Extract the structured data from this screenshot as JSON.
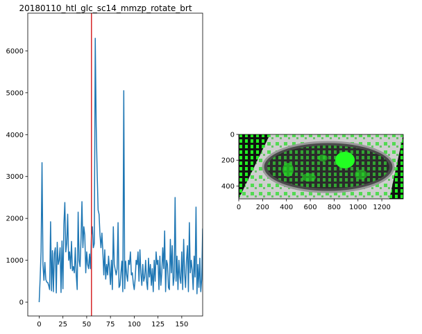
{
  "chart_data": [
    {
      "type": "line",
      "title": "20180110_htl_glc_sc14_mmzp_rotate_brt",
      "xlabel": "",
      "ylabel": "",
      "xlim": [
        -12,
        172
      ],
      "ylim": [
        -330,
        6900
      ],
      "x_ticks": [
        0,
        25,
        50,
        75,
        100,
        125,
        150
      ],
      "y_ticks": [
        0,
        1000,
        2000,
        3000,
        4000,
        5000,
        6000
      ],
      "series": [
        {
          "color": "#1f77b4",
          "values": [
            0,
            550,
            1200,
            3330,
            900,
            520,
            950,
            540,
            480,
            470,
            400,
            300,
            1920,
            270,
            1230,
            250,
            1160,
            1300,
            220,
            1430,
            900,
            1000,
            1300,
            230,
            1460,
            320,
            1850,
            2380,
            1200,
            1400,
            2100,
            1000,
            1200,
            800,
            1450,
            750,
            850,
            700,
            1300,
            650,
            300,
            2150,
            1000,
            850,
            1500,
            2400,
            1300,
            1800,
            1600,
            700,
            1200,
            900,
            800,
            1150,
            800,
            1600,
            1800,
            1300,
            1400,
            6300,
            4200,
            3100,
            2200,
            2100,
            1600,
            1300,
            1650,
            1200,
            650,
            1250,
            550,
            900,
            650,
            1100,
            800,
            420,
            1000,
            300,
            1800,
            900,
            780,
            650,
            800,
            1900,
            350,
            400,
            700,
            980,
            250,
            5050,
            320,
            980,
            650,
            500,
            1000,
            900,
            1200,
            650,
            700,
            450,
            300,
            560,
            1000,
            900,
            1200,
            500,
            1250,
            700,
            400,
            900,
            500,
            600,
            1000,
            500,
            300,
            1050,
            600,
            900,
            400,
            800,
            250,
            1000,
            500,
            1200,
            900,
            1000,
            300,
            1100,
            400,
            700,
            1300,
            800,
            1700,
            250,
            1000,
            900,
            350,
            300,
            1500,
            700,
            1350,
            400,
            600,
            2500,
            500,
            1100,
            300,
            1000,
            600,
            450,
            1200,
            300,
            1500,
            700,
            350,
            1000,
            1350,
            250,
            1900,
            700,
            1000,
            750,
            300,
            1100,
            600,
            2270,
            200,
            900,
            350,
            1050,
            250,
            550,
            1750,
            700,
            250,
            250
          ]
        }
      ],
      "vline": {
        "x": 55,
        "color": "#d62728"
      }
    },
    {
      "type": "image",
      "xlim": [
        0,
        1380
      ],
      "ylim": [
        500,
        0
      ],
      "x_ticks": [
        0,
        200,
        400,
        600,
        800,
        1000,
        1200
      ],
      "y_ticks": [
        0,
        200,
        400
      ]
    }
  ]
}
